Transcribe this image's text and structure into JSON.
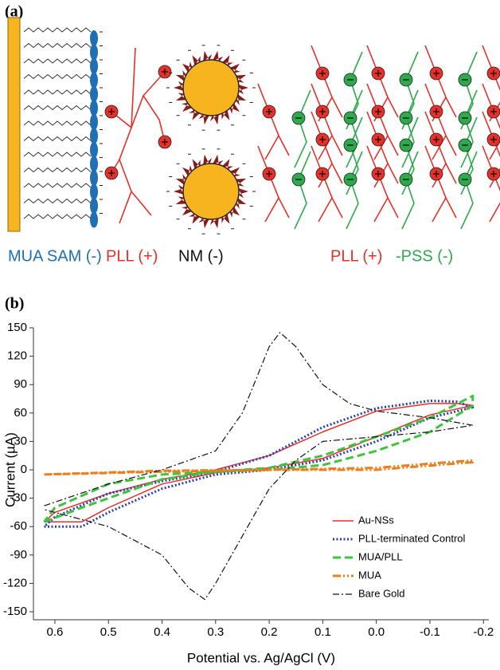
{
  "panel_a": {
    "label": "(a)",
    "labels": [
      "MUA SAM (-)",
      "PLL (+)",
      "NM (-)",
      "PLL (+)",
      "-PSS (-)"
    ]
  },
  "panel_b": {
    "label": "(b)"
  },
  "chart_data": {
    "type": "line",
    "x_label": "Potential vs. Ag/AgCl (V)",
    "y_label": "Current (µA)",
    "xlim": [
      0.64,
      -0.21
    ],
    "xticks": [
      0.6,
      0.5,
      0.4,
      0.3,
      0.2,
      0.1,
      {
        "value": 0,
        "label": "0.0"
      },
      -0.1,
      -0.2
    ],
    "ylim": [
      -150,
      150
    ],
    "yticks": [
      -150,
      -120,
      -90,
      -60,
      -30,
      0,
      30,
      60,
      90,
      120,
      150
    ],
    "legend": "lower right",
    "series": [
      {
        "name": "Au-NSs",
        "color": "#e8302a",
        "linestyle": "solid",
        "x": [
          0.62,
          0.55,
          0.5,
          0.4,
          0.3,
          0.2,
          0.1,
          0,
          -0.1,
          -0.18,
          -0.15,
          -0.1,
          0,
          0.1,
          0.2,
          0.3,
          0.4,
          0.5,
          0.6,
          0.62
        ],
        "values": [
          -55,
          -55,
          -40,
          -15,
          -3,
          2,
          12,
          35,
          58,
          68,
          70,
          70,
          62,
          40,
          15,
          0,
          -10,
          -25,
          -45,
          -55
        ]
      },
      {
        "name": "PLL-terminated Control",
        "color": "#2a3fb5",
        "linestyle": "dotted",
        "x": [
          0.62,
          0.55,
          0.5,
          0.4,
          0.3,
          0.2,
          0.1,
          0,
          -0.1,
          -0.18,
          -0.15,
          -0.1,
          0,
          0.1,
          0.2,
          0.3,
          0.4,
          0.5,
          0.6,
          0.62
        ],
        "values": [
          -60,
          -60,
          -45,
          -20,
          -5,
          0,
          10,
          30,
          55,
          66,
          72,
          73,
          65,
          45,
          15,
          -2,
          -12,
          -25,
          -50,
          -60
        ]
      },
      {
        "name": "MUA/PLL",
        "color": "#3cc43c",
        "linestyle": "dashed",
        "x": [
          0.62,
          0.55,
          0.5,
          0.4,
          0.3,
          0.2,
          0.1,
          0,
          -0.1,
          -0.18,
          -0.18,
          -0.1,
          0,
          0.1,
          0.2,
          0.3,
          0.4,
          0.5,
          0.6,
          0.62
        ],
        "values": [
          -55,
          -40,
          -30,
          -10,
          -2,
          0,
          5,
          20,
          40,
          68,
          78,
          55,
          35,
          15,
          2,
          -2,
          -5,
          -15,
          -40,
          -55
        ]
      },
      {
        "name": "MUA",
        "color": "#f07d1a",
        "linestyle": "dashdotdot",
        "x": [
          0.62,
          0.4,
          0.2,
          0,
          -0.18,
          -0.18,
          0,
          0.2,
          0.4,
          0.62
        ],
        "values": [
          -5,
          -2,
          0,
          0,
          8,
          10,
          2,
          0,
          -1,
          -5
        ]
      },
      {
        "name": "Bare Gold",
        "color": "#111111",
        "linestyle": "dashdot",
        "x": [
          0.62,
          0.5,
          0.4,
          0.3,
          0.25,
          0.2,
          0.18,
          0.15,
          0.1,
          0.05,
          0,
          -0.1,
          -0.18,
          -0.1,
          0,
          0.1,
          0.15,
          0.2,
          0.25,
          0.3,
          0.32,
          0.35,
          0.4,
          0.5,
          0.6,
          0.62
        ],
        "values": [
          -38,
          -15,
          0,
          20,
          60,
          130,
          145,
          130,
          90,
          70,
          62,
          55,
          47,
          40,
          35,
          30,
          10,
          -20,
          -70,
          -120,
          -137,
          -125,
          -90,
          -60,
          -45,
          -42
        ]
      }
    ]
  }
}
